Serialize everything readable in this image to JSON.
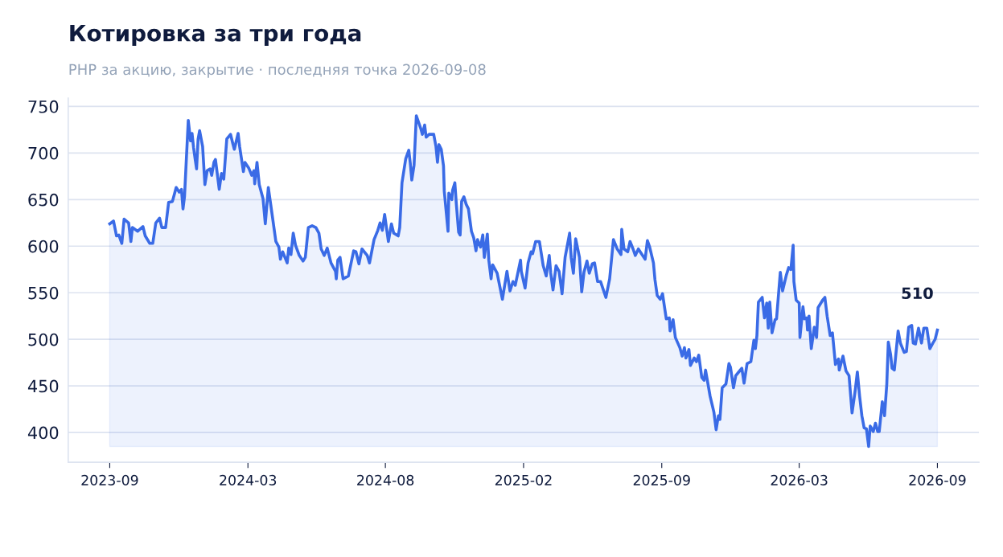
{
  "chart_data": {
    "type": "area",
    "title": "Котировка за три года",
    "subtitle": "PHP за акцию, закрытие · последняя точка 2026-09-08",
    "x": [
      "2023-09-08",
      "2023-09-13",
      "2023-09-17",
      "2023-09-20",
      "2023-09-24",
      "2023-09-27",
      "2023-10-03",
      "2023-10-06",
      "2023-10-08",
      "2023-10-15",
      "2023-10-22",
      "2023-10-25",
      "2023-10-31",
      "2023-11-04",
      "2023-11-08",
      "2023-11-13",
      "2023-11-16",
      "2023-11-21",
      "2023-11-25",
      "2023-11-30",
      "2023-12-05",
      "2023-12-09",
      "2023-12-12",
      "2023-12-14",
      "2023-12-16",
      "2023-12-21",
      "2023-12-24",
      "2023-12-26",
      "2023-12-28",
      "2023-12-30",
      "2024-01-01",
      "2024-01-03",
      "2024-01-05",
      "2024-01-09",
      "2024-01-12",
      "2024-01-15",
      "2024-01-19",
      "2024-01-21",
      "2024-01-24",
      "2024-01-26",
      "2024-01-31",
      "2024-02-03",
      "2024-02-06",
      "2024-02-10",
      "2024-02-15",
      "2024-02-18",
      "2024-02-20",
      "2024-02-25",
      "2024-02-27",
      "2024-03-03",
      "2024-03-05",
      "2024-03-10",
      "2024-03-14",
      "2024-03-17",
      "2024-03-18",
      "2024-03-21",
      "2024-03-24",
      "2024-03-29",
      "2024-04-01",
      "2024-04-05",
      "2024-04-09",
      "2024-04-15",
      "2024-04-19",
      "2024-04-21",
      "2024-04-24",
      "2024-04-30",
      "2024-05-02",
      "2024-05-05",
      "2024-05-08",
      "2024-05-11",
      "2024-05-16",
      "2024-05-21",
      "2024-05-24",
      "2024-05-28",
      "2024-06-02",
      "2024-06-07",
      "2024-06-11",
      "2024-06-14",
      "2024-06-18",
      "2024-06-22",
      "2024-06-27",
      "2024-07-03",
      "2024-07-04",
      "2024-07-06",
      "2024-07-09",
      "2024-07-13",
      "2024-07-20",
      "2024-07-27",
      "2024-07-30",
      "2024-08-03",
      "2024-08-07",
      "2024-08-14",
      "2024-08-17",
      "2024-08-23",
      "2024-08-28",
      "2024-08-31",
      "2024-09-03",
      "2024-09-06",
      "2024-09-11",
      "2024-09-15",
      "2024-09-18",
      "2024-09-24",
      "2024-09-26",
      "2024-09-29",
      "2024-10-04",
      "2024-10-08",
      "2024-10-10",
      "2024-10-12",
      "2024-10-15",
      "2024-10-18",
      "2024-10-24",
      "2024-10-26",
      "2024-10-29",
      "2024-10-31",
      "2024-11-04",
      "2024-11-10",
      "2024-11-13",
      "2024-11-15",
      "2024-11-17",
      "2024-11-20",
      "2024-11-23",
      "2024-11-24",
      "2024-11-29",
      "2024-11-30",
      "2024-12-04",
      "2024-12-05",
      "2024-12-08",
      "2024-12-10",
      "2024-12-13",
      "2024-12-15",
      "2024-12-17",
      "2024-12-20",
      "2024-12-23",
      "2024-12-26",
      "2024-12-30",
      "2025-01-02",
      "2025-01-05",
      "2025-01-07",
      "2025-01-11",
      "2025-01-14",
      "2025-01-16",
      "2025-01-20",
      "2025-01-22",
      "2025-01-25",
      "2025-01-27",
      "2025-02-02",
      "2025-02-09",
      "2025-02-15",
      "2025-02-19",
      "2025-02-23",
      "2025-02-26",
      "2025-03-05",
      "2025-03-06",
      "2025-03-11",
      "2025-03-15",
      "2025-03-19",
      "2025-03-21",
      "2025-03-25",
      "2025-03-30",
      "2025-04-04",
      "2025-04-08",
      "2025-04-12",
      "2025-04-14",
      "2025-04-17",
      "2025-04-21",
      "2025-04-25",
      "2025-04-29",
      "2025-05-03",
      "2025-05-09",
      "2025-05-11",
      "2025-05-14",
      "2025-05-17",
      "2025-05-22",
      "2025-05-25",
      "2025-05-28",
      "2025-06-01",
      "2025-06-04",
      "2025-06-08",
      "2025-06-11",
      "2025-06-15",
      "2025-06-19",
      "2025-06-26",
      "2025-07-01",
      "2025-07-06",
      "2025-07-11",
      "2025-07-16",
      "2025-07-17",
      "2025-07-20",
      "2025-07-25",
      "2025-07-28",
      "2025-08-01",
      "2025-08-04",
      "2025-08-08",
      "2025-08-12",
      "2025-08-17",
      "2025-08-20",
      "2025-08-23",
      "2025-08-28",
      "2025-08-30",
      "2025-09-02",
      "2025-09-06",
      "2025-09-09",
      "2025-09-14",
      "2025-09-18",
      "2025-09-19",
      "2025-09-23",
      "2025-09-26",
      "2025-10-02",
      "2025-10-05",
      "2025-10-08",
      "2025-10-10",
      "2025-10-14",
      "2025-10-16",
      "2025-10-21",
      "2025-10-24",
      "2025-10-27",
      "2025-10-31",
      "2025-11-03",
      "2025-11-05",
      "2025-11-08",
      "2025-11-11",
      "2025-11-16",
      "2025-11-19",
      "2025-11-22",
      "2025-11-24",
      "2025-11-27",
      "2025-12-02",
      "2025-12-06",
      "2025-12-08",
      "2025-12-12",
      "2025-12-15",
      "2025-12-19",
      "2025-12-23",
      "2025-12-26",
      "2025-12-30",
      "2026-01-04",
      "2026-01-08",
      "2026-01-10",
      "2026-01-12",
      "2026-01-14",
      "2026-01-19",
      "2026-01-22",
      "2026-01-25",
      "2026-01-27",
      "2026-01-29",
      "2026-02-01",
      "2026-02-05",
      "2026-02-07",
      "2026-02-12",
      "2026-02-15",
      "2026-02-20",
      "2026-02-23",
      "2026-02-26",
      "2026-03-01",
      "2026-03-02",
      "2026-03-05",
      "2026-03-09",
      "2026-03-10",
      "2026-03-14",
      "2026-03-16",
      "2026-03-19",
      "2026-03-20",
      "2026-03-22",
      "2026-03-25",
      "2026-03-29",
      "2026-04-01",
      "2026-04-03",
      "2026-04-09",
      "2026-04-12",
      "2026-04-15",
      "2026-04-19",
      "2026-04-22",
      "2026-04-26",
      "2026-04-30",
      "2026-05-01",
      "2026-05-06",
      "2026-05-10",
      "2026-05-14",
      "2026-05-18",
      "2026-05-22",
      "2026-05-25",
      "2026-05-28",
      "2026-05-31",
      "2026-06-03",
      "2026-06-06",
      "2026-06-09",
      "2026-06-11",
      "2026-06-15",
      "2026-06-18",
      "2026-06-21",
      "2026-06-23",
      "2026-06-27",
      "2026-06-30",
      "2026-07-03",
      "2026-07-05",
      "2026-07-08",
      "2026-07-10",
      "2026-07-13",
      "2026-07-18",
      "2026-07-21",
      "2026-07-26",
      "2026-07-29",
      "2026-08-01",
      "2026-08-05",
      "2026-08-07",
      "2026-08-10",
      "2026-08-14",
      "2026-08-18",
      "2026-08-21",
      "2026-08-25",
      "2026-08-29",
      "2026-09-02",
      "2026-09-05",
      "2026-09-08"
    ],
    "series": [
      {
        "color": "#3a6be6",
        "values": [
          624,
          627,
          611,
          612,
          603,
          629,
          625,
          605,
          620,
          616,
          621,
          611,
          603,
          603,
          625,
          630,
          620,
          620,
          647,
          648,
          663,
          658,
          661,
          640,
          653,
          735,
          713,
          721,
          706,
          694,
          683,
          715,
          724,
          707,
          666,
          681,
          683,
          676,
          690,
          693,
          661,
          678,
          672,
          715,
          720,
          710,
          704,
          721,
          707,
          680,
          690,
          684,
          676,
          681,
          667,
          690,
          666,
          651,
          624,
          663,
          640,
          605,
          599,
          586,
          594,
          582,
          598,
          591,
          614,
          601,
          590,
          584,
          588,
          620,
          622,
          620,
          614,
          597,
          590,
          598,
          582,
          573,
          565,
          585,
          588,
          565,
          568,
          595,
          594,
          581,
          597,
          590,
          582,
          607,
          617,
          625,
          617,
          634,
          605,
          624,
          614,
          611,
          620,
          668,
          694,
          703,
          689,
          671,
          687,
          740,
          726,
          720,
          730,
          717,
          720,
          720,
          707,
          690,
          709,
          704,
          686,
          659,
          616,
          657,
          650,
          660,
          668,
          645,
          615,
          612,
          648,
          653,
          645,
          640,
          616,
          609,
          595,
          607,
          599,
          612,
          588,
          613,
          585,
          565,
          580,
          571,
          543,
          573,
          552,
          562,
          558,
          585,
          573,
          555,
          582,
          594,
          592,
          605,
          605,
          579,
          568,
          590,
          571,
          553,
          579,
          573,
          549,
          588,
          614,
          588,
          571,
          608,
          588,
          551,
          572,
          584,
          571,
          581,
          582,
          562,
          562,
          545,
          565,
          607,
          597,
          591,
          618,
          597,
          594,
          605,
          597,
          590,
          597,
          592,
          586,
          606,
          599,
          582,
          564,
          547,
          543,
          549,
          522,
          523,
          509,
          521,
          502,
          491,
          482,
          491,
          480,
          489,
          472,
          480,
          476,
          483,
          459,
          456,
          467,
          453,
          439,
          422,
          403,
          418,
          414,
          448,
          452,
          474,
          470,
          448,
          461,
          465,
          469,
          453,
          474,
          476,
          499,
          490,
          504,
          540,
          545,
          523,
          539,
          512,
          540,
          507,
          521,
          522,
          572,
          552,
          569,
          577,
          575,
          601,
          562,
          542,
          539,
          502,
          535,
          522,
          523,
          510,
          525,
          490,
          513,
          502,
          534,
          542,
          545,
          525,
          504,
          507,
          473,
          479,
          467,
          482,
          466,
          461,
          421,
          444,
          465,
          439,
          418,
          405,
          404,
          385,
          407,
          401,
          410,
          401,
          401,
          433,
          418,
          452,
          497,
          484,
          469,
          467,
          509,
          496,
          486,
          487,
          513,
          515,
          496,
          495,
          512,
          496,
          512,
          512,
          490,
          496,
          500,
          510
        ]
      }
    ],
    "xlim": [
      "2023-07-15",
      "2026-11-02"
    ],
    "xticks": [
      {
        "value": "2023-09-08",
        "label": "2023-09"
      },
      {
        "value": "2024-03-09",
        "label": "2024-03"
      },
      {
        "value": "2024-09-07",
        "label": "2024-08"
      },
      {
        "value": "2025-03-09",
        "label": "2025-02"
      },
      {
        "value": "2025-09-08",
        "label": "2025-09"
      },
      {
        "value": "2026-03-09",
        "label": "2026-03"
      },
      {
        "value": "2026-09-08",
        "label": "2026-09"
      }
    ],
    "ylim": [
      368,
      759
    ],
    "yticks": [
      400,
      450,
      500,
      550,
      600,
      650,
      700,
      750
    ],
    "grid": "y",
    "line_style": "solid",
    "annotations": [
      {
        "text": "510",
        "x": "2026-09-08",
        "y": 510
      }
    ]
  }
}
